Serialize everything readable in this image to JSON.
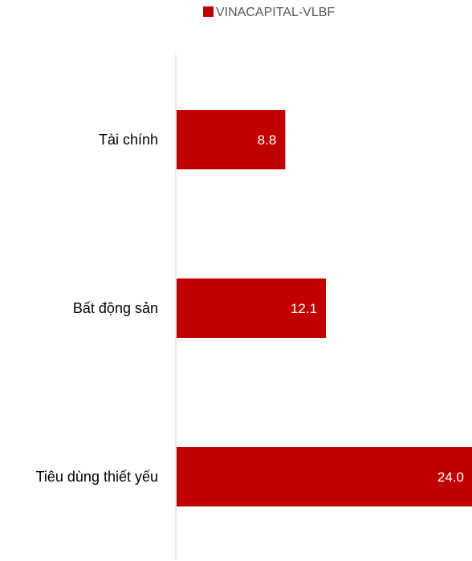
{
  "chart_data": {
    "type": "bar",
    "orientation": "horizontal",
    "categories": [
      "Tài chính",
      "Bất động sản",
      "Tiêu dùng thiết yếu"
    ],
    "series": [
      {
        "name": "VINACAPITAL-VLBF",
        "values": [
          8.8,
          12.1,
          24.0
        ],
        "labels": [
          "8.8",
          "12.1",
          "24.0"
        ],
        "color": "#c00000"
      }
    ],
    "legend": {
      "position": "top"
    },
    "xlim": [
      0,
      24.0
    ],
    "grid": false,
    "axis_color": "#d9d9d9"
  }
}
